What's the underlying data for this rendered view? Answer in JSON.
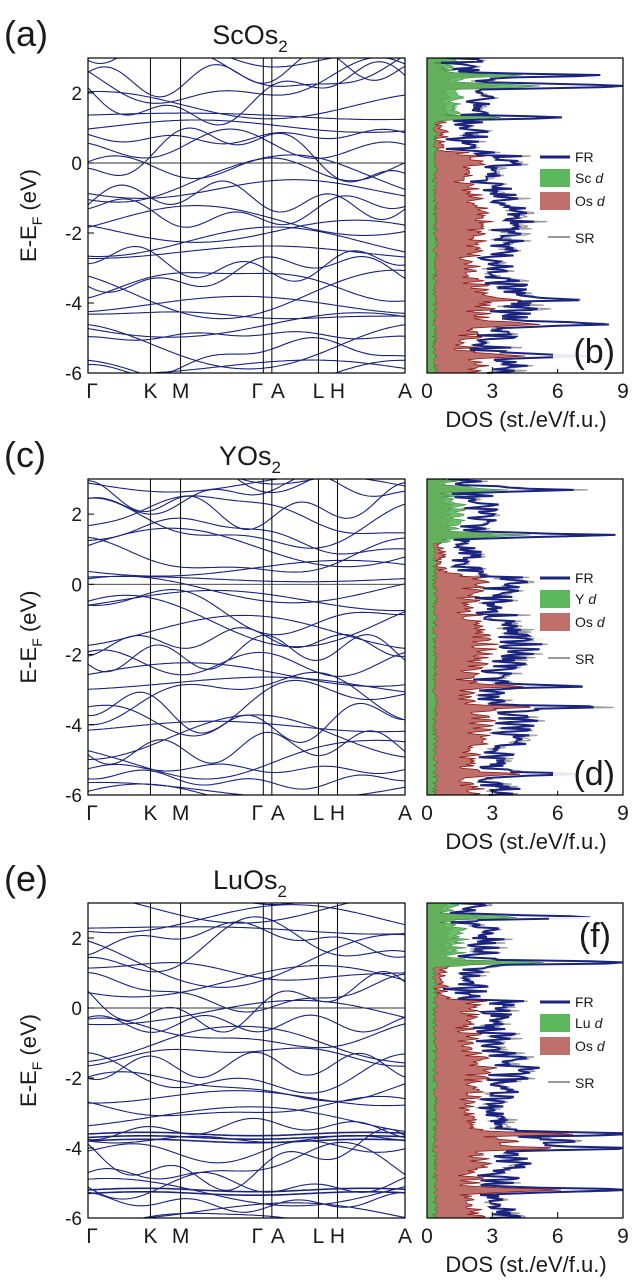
{
  "chart_data": [
    {
      "type": "line",
      "panel_label": "(a)",
      "title": "ScOs",
      "title_subscript": "2",
      "ylabel": "E-E",
      "ylabel_subscript": "F",
      "ylabel_unit": " (eV)",
      "ylim": [
        -6,
        3
      ],
      "yticks": [
        "2",
        "0",
        "-2",
        "-4",
        "-6"
      ],
      "k_points": [
        "Γ",
        "K",
        "M",
        "Γ",
        "A",
        "L",
        "H",
        "A"
      ],
      "fermi_level": 0,
      "band_color": "#1a237e",
      "seed": 11,
      "flat_bands": []
    },
    {
      "type": "area",
      "panel_label": "(b)",
      "xlabel": "DOS (st./eV/f.u.)",
      "xlim": [
        0,
        9
      ],
      "xticks": [
        "0",
        "3",
        "6",
        "9"
      ],
      "ylim": [
        -6,
        3
      ],
      "series": [
        {
          "name": "FR",
          "color": "#1a237e"
        },
        {
          "name": "Sc d",
          "color": "#5cb85c"
        },
        {
          "name": "Os d",
          "color": "#c0706a"
        },
        {
          "name": "SR",
          "color": "#999999"
        }
      ],
      "legend": {
        "element": "Sc",
        "orbital": "d",
        "os": "Os"
      },
      "peaks": [
        [
          2.2,
          8.4
        ],
        [
          2.5,
          6.0
        ],
        [
          1.3,
          4.2
        ],
        [
          -4.6,
          6.8
        ],
        [
          -3.9,
          5.4
        ],
        [
          -5.5,
          5.2
        ]
      ],
      "seed": 21
    },
    {
      "type": "line",
      "panel_label": "(c)",
      "title": "YOs",
      "title_subscript": "2",
      "ylabel": "E-E",
      "ylabel_subscript": "F",
      "ylabel_unit": " (eV)",
      "ylim": [
        -6,
        3
      ],
      "yticks": [
        "2",
        "0",
        "-2",
        "-4",
        "-6"
      ],
      "k_points": [
        "Γ",
        "K",
        "M",
        "Γ",
        "A",
        "L",
        "H",
        "A"
      ],
      "fermi_level": 0,
      "band_color": "#1a237e",
      "seed": 12,
      "flat_bands": []
    },
    {
      "type": "area",
      "panel_label": "(d)",
      "xlabel": "DOS (st./eV/f.u.)",
      "xlim": [
        0,
        9
      ],
      "xticks": [
        "0",
        "3",
        "6",
        "9"
      ],
      "ylim": [
        -6,
        3
      ],
      "series": [
        {
          "name": "FR",
          "color": "#1a237e"
        },
        {
          "name": "Y d",
          "color": "#5cb85c"
        },
        {
          "name": "Os d",
          "color": "#c0706a"
        },
        {
          "name": "SR",
          "color": "#999999"
        }
      ],
      "legend": {
        "element": "Y",
        "orbital": "d",
        "os": "Os"
      },
      "peaks": [
        [
          1.4,
          7.4
        ],
        [
          2.7,
          5.0
        ],
        [
          -3.5,
          6.0
        ],
        [
          -2.9,
          5.2
        ],
        [
          -5.4,
          5.8
        ]
      ],
      "seed": 22
    },
    {
      "type": "line",
      "panel_label": "(e)",
      "title": "LuOs",
      "title_subscript": "2",
      "ylabel": "E-E",
      "ylabel_subscript": "F",
      "ylabel_unit": " (eV)",
      "ylim": [
        -6,
        3
      ],
      "yticks": [
        "2",
        "0",
        "-2",
        "-4",
        "-6"
      ],
      "k_points": [
        "Γ",
        "K",
        "M",
        "Γ",
        "A",
        "L",
        "H",
        "A"
      ],
      "fermi_level": 0,
      "band_color": "#1a237e",
      "seed": 13,
      "flat_bands": [
        -3.6,
        -3.7,
        -3.8,
        -5.2,
        -5.3
      ]
    },
    {
      "type": "area",
      "panel_label": "(f)",
      "xlabel": "DOS (st./eV/f.u.)",
      "xlim": [
        0,
        9
      ],
      "xticks": [
        "0",
        "3",
        "6",
        "9"
      ],
      "ylim": [
        -6,
        3
      ],
      "series": [
        {
          "name": "FR",
          "color": "#1a237e"
        },
        {
          "name": "Lu d",
          "color": "#5cb85c"
        },
        {
          "name": "Os d",
          "color": "#c0706a"
        },
        {
          "name": "SR",
          "color": "#999999"
        }
      ],
      "legend": {
        "element": "Lu",
        "orbital": "d",
        "os": "Os"
      },
      "peaks": [
        [
          1.3,
          8.6
        ],
        [
          2.6,
          6.2
        ],
        [
          -3.6,
          9.0
        ],
        [
          -4.0,
          8.2
        ],
        [
          -5.2,
          8.8
        ],
        [
          -3.8,
          6.0
        ]
      ],
      "seed": 23
    }
  ]
}
